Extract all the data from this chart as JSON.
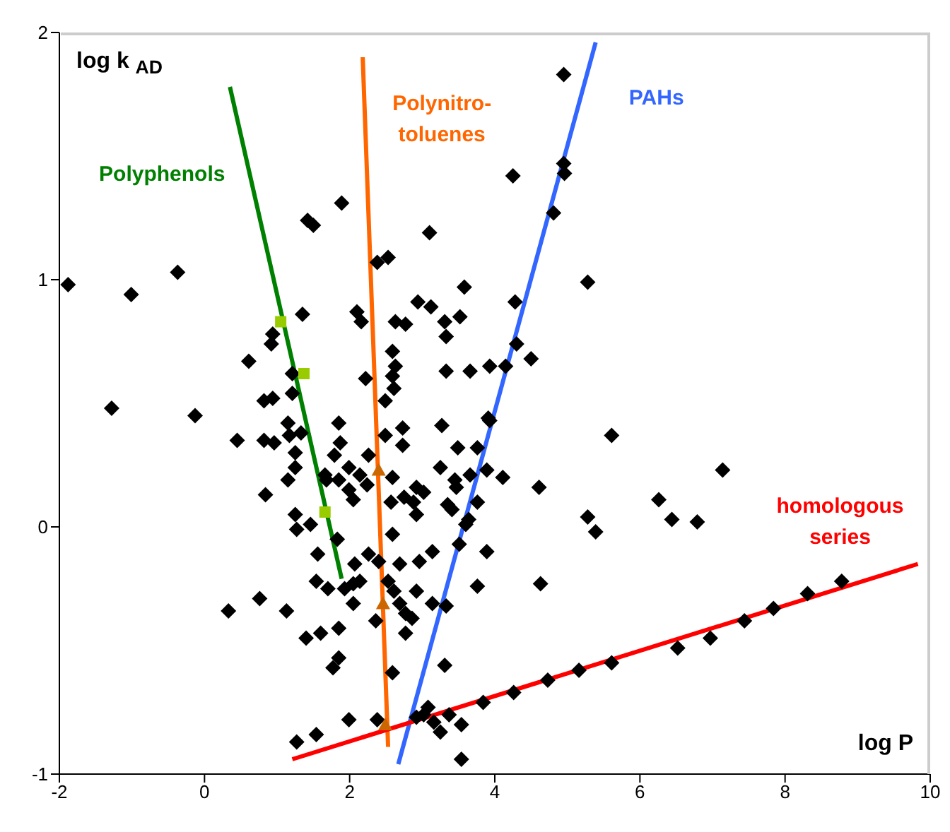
{
  "chart_data": {
    "type": "scatter",
    "xlabel": "log P",
    "ylabel": "log k $_{AD}$",
    "xlim": [
      -2,
      10
    ],
    "ylim": [
      -1,
      2
    ],
    "xticks": [
      -2,
      0,
      2,
      4,
      6,
      8,
      10
    ],
    "yticks": [
      -1,
      0,
      1,
      2
    ],
    "grid": false,
    "legend": false,
    "marker": "diamond",
    "series": [
      {
        "color": "#000000",
        "x": [
          -1.88,
          -1.01,
          -0.37,
          -1.28,
          -0.13,
          0.45,
          1.89,
          1.42,
          1.5,
          2.38,
          2.53,
          3.1,
          3.58,
          2.94,
          3.12,
          3.52,
          3.31,
          3.33,
          2.1,
          2.16,
          2.63,
          2.77,
          1.35,
          0.94,
          0.92,
          0.61,
          1.21,
          2.59,
          2.63,
          2.59,
          2.61,
          2.22,
          3.33,
          3.66,
          3.93,
          0.94,
          0.82,
          1.21,
          2.49,
          4.95,
          4.25,
          4.95,
          4.96,
          4.81,
          5.28,
          4.28,
          4.3,
          4.5,
          4.15,
          0.82,
          0.96,
          1.15,
          1.17,
          1.33,
          1.85,
          1.87,
          1.25,
          1.25,
          1.15,
          0.84,
          1.79,
          1.99,
          1.66,
          1.68,
          1.85,
          2.14,
          2.24,
          1.99,
          2.05,
          2.26,
          2.59,
          2.57,
          2.75,
          2.49,
          2.73,
          2.73,
          3.27,
          3.49,
          3.76,
          3.91,
          3.25,
          3.45,
          3.47,
          3.66,
          3.89,
          2.92,
          3.02,
          2.88,
          2.92,
          3.35,
          3.41,
          3.76,
          3.64,
          3.6,
          3.51,
          3.89,
          1.25,
          1.27,
          1.46,
          1.83,
          2.59,
          1.56,
          2.26,
          2.07,
          2.4,
          2.69,
          3.14,
          2.96,
          1.54,
          1.7,
          1.93,
          2.05,
          2.14,
          2.05,
          2.53,
          2.61,
          2.92,
          3.14,
          3.33,
          3.76,
          2.69,
          2.77,
          2.86,
          2.36,
          2.77,
          1.85,
          1.6,
          1.4,
          0.76,
          1.13,
          0.33,
          1.85,
          1.77,
          2.59,
          3.31,
          1.99,
          2.38,
          1.54,
          1.27,
          3.08,
          3.02,
          2.92,
          3.16,
          3.37,
          3.25,
          3.54,
          3.54,
          3.84,
          3.93,
          4.11,
          5.61,
          7.14,
          4.61,
          5.28,
          5.39,
          6.26,
          6.44,
          6.79,
          4.63,
          4.26,
          4.73,
          5.16,
          5.61,
          6.52,
          6.97,
          7.44,
          7.84,
          8.31,
          8.78
        ],
        "values": [
          0.98,
          0.94,
          1.03,
          0.48,
          0.45,
          0.35,
          1.31,
          1.24,
          1.22,
          1.07,
          1.09,
          1.19,
          0.97,
          0.91,
          0.89,
          0.85,
          0.83,
          0.77,
          0.87,
          0.83,
          0.83,
          0.82,
          0.86,
          0.78,
          0.74,
          0.67,
          0.62,
          0.71,
          0.65,
          0.61,
          0.56,
          0.6,
          0.63,
          0.63,
          0.65,
          0.52,
          0.51,
          0.54,
          0.51,
          1.83,
          1.42,
          1.47,
          1.43,
          1.27,
          0.99,
          0.91,
          0.74,
          0.68,
          0.65,
          0.35,
          0.34,
          0.42,
          0.37,
          0.38,
          0.42,
          0.34,
          0.3,
          0.24,
          0.19,
          0.13,
          0.29,
          0.24,
          0.21,
          0.19,
          0.19,
          0.21,
          0.17,
          0.15,
          0.11,
          0.29,
          0.2,
          0.1,
          0.12,
          0.37,
          0.4,
          0.33,
          0.41,
          0.32,
          0.32,
          0.44,
          0.24,
          0.19,
          0.16,
          0.21,
          0.23,
          0.16,
          0.14,
          0.1,
          0.05,
          0.09,
          0.07,
          0.1,
          0.03,
          0.01,
          -0.07,
          -0.1,
          0.05,
          -0.01,
          0.01,
          -0.05,
          -0.03,
          -0.11,
          -0.11,
          -0.15,
          -0.14,
          -0.15,
          -0.1,
          -0.14,
          -0.22,
          -0.25,
          -0.25,
          -0.23,
          -0.22,
          -0.31,
          -0.22,
          -0.26,
          -0.26,
          -0.31,
          -0.32,
          -0.24,
          -0.31,
          -0.35,
          -0.37,
          -0.38,
          -0.43,
          -0.41,
          -0.43,
          -0.45,
          -0.29,
          -0.34,
          -0.34,
          -0.53,
          -0.57,
          -0.59,
          -0.56,
          -0.78,
          -0.78,
          -0.84,
          -0.87,
          -0.73,
          -0.76,
          -0.77,
          -0.79,
          -0.76,
          -0.83,
          -0.8,
          -0.94,
          -0.71,
          0.43,
          0.2,
          0.37,
          0.23,
          0.16,
          0.04,
          -0.02,
          0.11,
          0.03,
          0.02,
          -0.23,
          -0.67,
          -0.62,
          -0.58,
          -0.55,
          -0.49,
          -0.45,
          -0.38,
          -0.33,
          -0.27,
          -0.22
        ]
      },
      {
        "type": "scatter",
        "color": "#99cc00",
        "marker": "square",
        "x": [
          1.05,
          1.37,
          1.66
        ],
        "values": [
          0.83,
          0.62,
          0.06
        ]
      },
      {
        "type": "scatter",
        "color": "#cc6600",
        "marker": "triangle",
        "x": [
          2.4,
          2.46,
          2.49
        ],
        "values": [
          0.23,
          -0.31,
          -0.8
        ]
      },
      {
        "type": "line",
        "name": "Polyphenols",
        "color": "#008000",
        "marker": "none",
        "x": [
          0.35,
          1.89
        ],
        "values": [
          1.78,
          -0.21
        ]
      },
      {
        "type": "line",
        "name": "Polynitro-\ntoluenes",
        "color": "#ff6600",
        "marker": "none",
        "x": [
          2.18,
          2.53
        ],
        "values": [
          1.9,
          -0.89
        ]
      },
      {
        "type": "line",
        "name": "PAHs",
        "color": "#3366ff",
        "marker": "none",
        "x": [
          5.39,
          2.67
        ],
        "values": [
          1.96,
          -0.96
        ]
      },
      {
        "type": "line",
        "name": "homologous\nseries",
        "color": "#ff0000",
        "marker": "none",
        "x": [
          1.21,
          9.83
        ],
        "values": [
          -0.94,
          -0.15
        ]
      }
    ]
  }
}
